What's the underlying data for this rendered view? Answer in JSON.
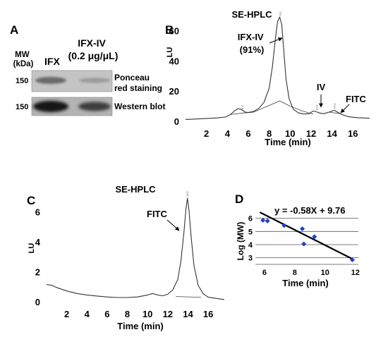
{
  "panel_A": {
    "letter": "A",
    "mw_label": [
      "MW",
      "(kDa)"
    ],
    "lane_ifx": "IFX",
    "lane_ifxiv": [
      "IFX-IV",
      "(0.2 μg/μL)"
    ],
    "blots": [
      {
        "mw": "150",
        "caption": [
          "Ponceau",
          "red staining"
        ]
      },
      {
        "mw": "150",
        "caption": [
          "Western blot"
        ]
      }
    ]
  },
  "panel_B": {
    "letter": "B",
    "title": "SE-HPLC",
    "annotations": [
      [
        "IFX-IV",
        "(91%)"
      ],
      [
        "IV"
      ],
      [
        "FITC"
      ]
    ],
    "peak_tags": [
      "5.4",
      "9.0",
      "12.5",
      "14.2"
    ]
  },
  "panel_C": {
    "letter": "C",
    "title": "SE-HPLC",
    "annotations": [
      [
        "FITC"
      ]
    ],
    "peak_tags": [
      "13.9"
    ]
  },
  "panel_D": {
    "letter": "D",
    "equation": "y = -0.58X + 9.76"
  },
  "chart_data": [
    {
      "id": "B",
      "type": "line",
      "title": "SE-HPLC",
      "xlabel": "Time (min)",
      "ylabel": "LU",
      "xlim": [
        0,
        17.6
      ],
      "ylim": [
        0,
        70
      ],
      "xticks": [
        2,
        4,
        6,
        8,
        10,
        12,
        14,
        16
      ],
      "yticks": [
        0,
        20,
        40,
        60
      ],
      "x": [
        0.0,
        1.0,
        2.0,
        3.0,
        3.8,
        4.3,
        4.7,
        5.0,
        5.3,
        5.5,
        5.7,
        6.0,
        6.5,
        7.0,
        7.5,
        8.0,
        8.3,
        8.6,
        8.8,
        9.0,
        9.2,
        9.4,
        9.6,
        9.9,
        10.3,
        10.8,
        11.3,
        11.8,
        12.2,
        12.5,
        12.8,
        13.2,
        13.8,
        14.2,
        14.6,
        15.0,
        15.6,
        16.5,
        17.6
      ],
      "y": [
        1.2,
        1.5,
        1.8,
        2.2,
        2.8,
        4.5,
        7.0,
        8.3,
        8.0,
        7.0,
        6.0,
        5.8,
        6.5,
        8.5,
        12.5,
        22.0,
        36.0,
        55.0,
        66.0,
        69.0,
        64.0,
        46.0,
        28.0,
        15.0,
        8.0,
        5.5,
        4.8,
        5.0,
        6.8,
        6.3,
        5.5,
        5.0,
        6.2,
        7.3,
        5.8,
        4.3,
        3.0,
        2.3,
        2.0
      ],
      "baselines": [
        {
          "x": [
            4.3,
            5.6,
            6.5,
            9.0,
            10.0,
            11.1,
            11.8,
            12.2
          ],
          "y": [
            4.5,
            5.5,
            6.0,
            13.5,
            10.0,
            7.0,
            5.5,
            4.8
          ]
        },
        {
          "x": [
            13.8,
            14.8
          ],
          "y": [
            6.0,
            5.0
          ]
        }
      ]
    },
    {
      "id": "C",
      "type": "line",
      "title": "SE-HPLC",
      "xlabel": "Time (min)",
      "ylabel": "LU",
      "xlim": [
        0,
        17.6
      ],
      "ylim": [
        0,
        7
      ],
      "xticks": [
        2,
        4,
        6,
        8,
        10,
        12,
        14,
        16
      ],
      "yticks": [
        0,
        2,
        4,
        6
      ],
      "x": [
        0.0,
        0.5,
        1.0,
        2.0,
        3.0,
        4.0,
        5.0,
        6.0,
        7.0,
        8.0,
        9.0,
        10.0,
        10.5,
        11.0,
        11.5,
        12.0,
        12.5,
        13.0,
        13.3,
        13.6,
        13.8,
        13.95,
        14.1,
        14.3,
        14.6,
        15.0,
        15.5,
        16.0,
        17.0,
        17.6
      ],
      "y": [
        1.15,
        1.1,
        0.95,
        0.72,
        0.55,
        0.45,
        0.38,
        0.32,
        0.28,
        0.28,
        0.32,
        0.45,
        0.55,
        0.45,
        0.4,
        0.5,
        0.8,
        1.5,
        2.7,
        4.6,
        6.2,
        6.9,
        6.1,
        4.4,
        2.4,
        1.1,
        0.55,
        0.3,
        0.2,
        0.15
      ],
      "baselines": [
        {
          "x": [
            12.8,
            15.3
          ],
          "y": [
            0.35,
            0.3
          ]
        }
      ]
    },
    {
      "id": "D",
      "type": "scatter",
      "xlabel": "Time (min)",
      "ylabel": "Log (MW)",
      "xlim": [
        5.4,
        12.2
      ],
      "ylim": [
        2.5,
        6.3
      ],
      "xticks": [
        6,
        8,
        10,
        12
      ],
      "yticks": [
        3,
        4,
        5,
        6
      ],
      "points": {
        "x": [
          5.9,
          6.2,
          7.3,
          8.5,
          8.6,
          9.3,
          11.8
        ],
        "y": [
          5.85,
          5.8,
          5.45,
          5.2,
          4.05,
          4.6,
          2.85
        ]
      },
      "fit": {
        "slope": -0.58,
        "intercept": 9.76,
        "x": [
          5.7,
          11.85
        ]
      }
    }
  ]
}
